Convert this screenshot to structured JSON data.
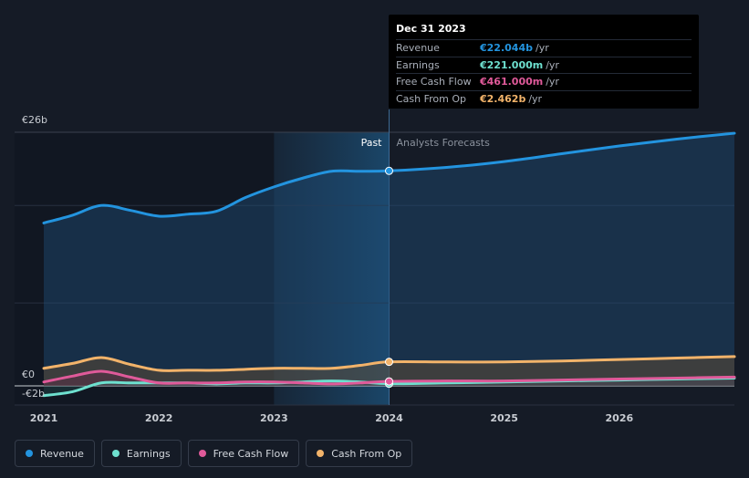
{
  "tooltip": {
    "date": "Dec 31 2023",
    "rows": [
      {
        "label": "Revenue",
        "value": "€22.044b",
        "unit": "/yr",
        "color": "#2394df"
      },
      {
        "label": "Earnings",
        "value": "€221.000m",
        "unit": "/yr",
        "color": "#6ee0cf"
      },
      {
        "label": "Free Cash Flow",
        "value": "€461.000m",
        "unit": "/yr",
        "color": "#e05a9a"
      },
      {
        "label": "Cash From Op",
        "value": "€2.462b",
        "unit": "/yr",
        "color": "#f2b36a"
      }
    ]
  },
  "labels": {
    "past": "Past",
    "forecast": "Analysts Forecasts"
  },
  "legend": [
    {
      "label": "Revenue",
      "color": "#2394df"
    },
    {
      "label": "Earnings",
      "color": "#6ee0cf"
    },
    {
      "label": "Free Cash Flow",
      "color": "#e05a9a"
    },
    {
      "label": "Cash From Op",
      "color": "#f2b36a"
    }
  ],
  "chart_data": {
    "type": "line",
    "title": "",
    "xlabel": "",
    "ylabel": "",
    "unit": "€ billions",
    "xlim": [
      2021.0,
      2027.0
    ],
    "ylim": [
      -2,
      26
    ],
    "y_tick_labels": [
      {
        "value": 26,
        "label": "€26b"
      },
      {
        "value": 0,
        "label": "€0"
      },
      {
        "value": -2,
        "label": "-€2b"
      }
    ],
    "x_ticks": [
      2021,
      2022,
      2023,
      2024,
      2025,
      2026
    ],
    "x_tick_labels": [
      "2021",
      "2022",
      "2023",
      "2024",
      "2025",
      "2026"
    ],
    "divider_x": 2024.0,
    "highlight_start_x": 2023.0,
    "series": [
      {
        "name": "Revenue",
        "color": "#2394df",
        "x": [
          2021.0,
          2021.25,
          2021.5,
          2021.75,
          2022.0,
          2022.25,
          2022.5,
          2022.75,
          2023.0,
          2023.25,
          2023.5,
          2023.75,
          2024.0,
          2024.5,
          2025.0,
          2025.5,
          2026.0,
          2026.5,
          2027.0
        ],
        "values": [
          16.7,
          17.5,
          18.5,
          18.0,
          17.4,
          17.6,
          17.9,
          19.3,
          20.4,
          21.3,
          22.0,
          22.0,
          22.044,
          22.4,
          23.0,
          23.8,
          24.6,
          25.3,
          25.9
        ]
      },
      {
        "name": "Earnings",
        "color": "#6ee0cf",
        "x": [
          2021.0,
          2021.25,
          2021.5,
          2021.75,
          2022.0,
          2022.25,
          2022.5,
          2022.75,
          2023.0,
          2023.25,
          2023.5,
          2023.75,
          2024.0,
          2024.5,
          2025.0,
          2025.5,
          2026.0,
          2026.5,
          2027.0
        ],
        "values": [
          -1.0,
          -0.6,
          0.3,
          0.3,
          0.3,
          0.3,
          0.2,
          0.3,
          0.3,
          0.4,
          0.5,
          0.4,
          0.221,
          0.3,
          0.4,
          0.5,
          0.6,
          0.7,
          0.8
        ]
      },
      {
        "name": "Free Cash Flow",
        "color": "#e05a9a",
        "x": [
          2021.0,
          2021.25,
          2021.5,
          2021.75,
          2022.0,
          2022.25,
          2022.5,
          2022.75,
          2023.0,
          2023.25,
          2023.5,
          2023.75,
          2024.0,
          2024.5,
          2025.0,
          2025.5,
          2026.0,
          2026.5,
          2027.0
        ],
        "values": [
          0.4,
          1.0,
          1.5,
          0.9,
          0.3,
          0.3,
          0.3,
          0.4,
          0.4,
          0.3,
          0.2,
          0.3,
          0.461,
          0.5,
          0.5,
          0.6,
          0.7,
          0.8,
          0.9
        ]
      },
      {
        "name": "Cash From Op",
        "color": "#f2b36a",
        "x": [
          2021.0,
          2021.25,
          2021.5,
          2021.75,
          2022.0,
          2022.25,
          2022.5,
          2022.75,
          2023.0,
          2023.25,
          2023.5,
          2023.75,
          2024.0,
          2024.5,
          2025.0,
          2025.5,
          2026.0,
          2026.5,
          2027.0
        ],
        "values": [
          1.8,
          2.3,
          2.9,
          2.2,
          1.6,
          1.6,
          1.6,
          1.7,
          1.8,
          1.8,
          1.8,
          2.1,
          2.462,
          2.45,
          2.45,
          2.55,
          2.7,
          2.85,
          3.0
        ]
      }
    ]
  }
}
